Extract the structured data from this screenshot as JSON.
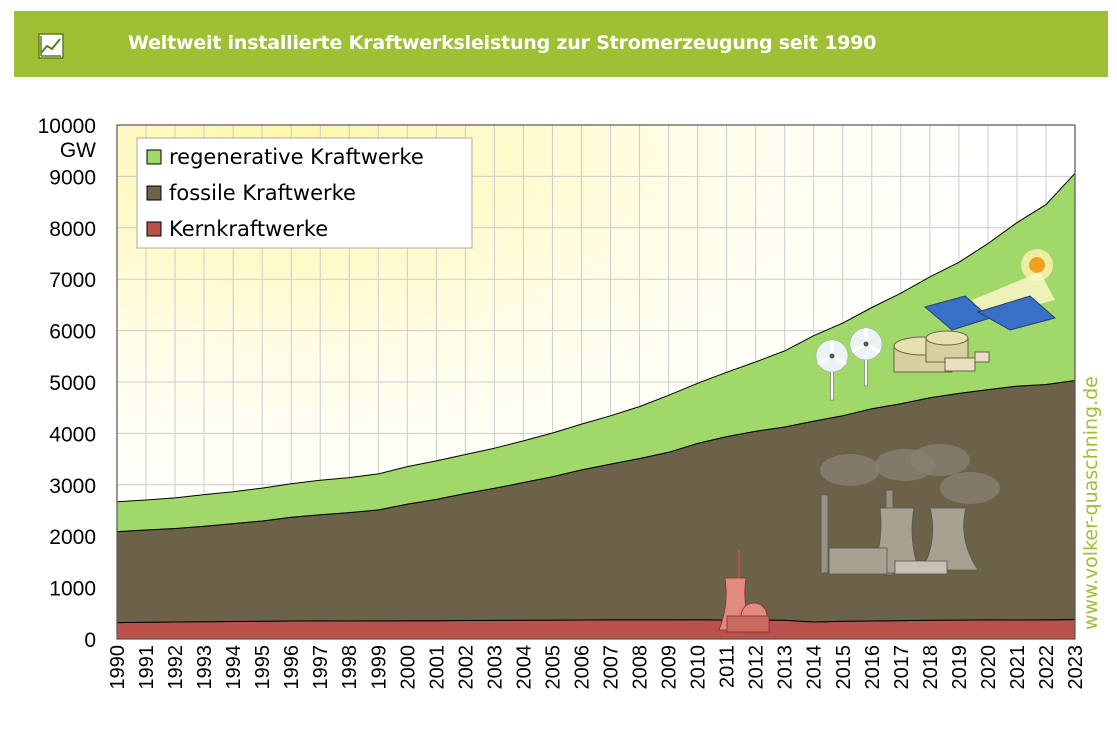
{
  "header": {
    "title": "Weltweit installierte Kraftwerksleistung zur Stromerzeugung seit 1990",
    "icon": "line-chart-icon"
  },
  "watermark": "www.volker-quaschning.de",
  "colors": {
    "header_bg": "#9fbf35",
    "renewable": "#a0d86a",
    "fossil": "#6b6249",
    "nuclear": "#b8524a",
    "grid": "#cccccc"
  },
  "chart_data": {
    "type": "area",
    "stacked": true,
    "title": "Weltweit installierte Kraftwerksleistung zur Stromerzeugung seit 1990",
    "xlabel": "",
    "ylabel": "GW",
    "unit_label": "GW",
    "ylim": [
      0,
      10000
    ],
    "yticks": [
      0,
      1000,
      2000,
      3000,
      4000,
      5000,
      6000,
      7000,
      8000,
      9000,
      10000
    ],
    "grid": true,
    "legend_position": "top-left",
    "x": [
      "1990",
      "1991",
      "1992",
      "1993",
      "1994",
      "1995",
      "1996",
      "1997",
      "1998",
      "1999",
      "2000",
      "2001",
      "2002",
      "2003",
      "2004",
      "2005",
      "2006",
      "2007",
      "2008",
      "2009",
      "2010",
      "2011",
      "2012",
      "2013",
      "2014",
      "2015",
      "2016",
      "2017",
      "2018",
      "2019",
      "2020",
      "2021",
      "2022",
      "2023"
    ],
    "series": [
      {
        "name": "Kernkraftwerke",
        "values": [
          320,
          325,
          330,
          335,
          340,
          345,
          350,
          352,
          350,
          352,
          355,
          355,
          360,
          362,
          365,
          368,
          370,
          372,
          372,
          372,
          375,
          368,
          372,
          365,
          330,
          345,
          350,
          358,
          365,
          368,
          372,
          370,
          372,
          380
        ]
      },
      {
        "name": "fossile Kraftwerke",
        "values": [
          1770,
          1795,
          1820,
          1860,
          1905,
          1950,
          2020,
          2065,
          2110,
          2160,
          2270,
          2360,
          2470,
          2570,
          2680,
          2790,
          2920,
          3030,
          3140,
          3260,
          3430,
          3570,
          3670,
          3760,
          3910,
          4000,
          4130,
          4220,
          4330,
          4410,
          4480,
          4550,
          4580,
          4650
        ]
      },
      {
        "name": "regenerative Kraftwerke",
        "values": [
          580,
          585,
          595,
          615,
          620,
          640,
          650,
          670,
          680,
          700,
          730,
          750,
          760,
          780,
          810,
          850,
          890,
          940,
          1010,
          1110,
          1170,
          1250,
          1350,
          1480,
          1660,
          1800,
          1970,
          2150,
          2350,
          2550,
          2840,
          3180,
          3500,
          4030
        ]
      }
    ],
    "legend": [
      "regenerative Kraftwerke",
      "fossile Kraftwerke",
      "Kernkraftwerke"
    ]
  }
}
